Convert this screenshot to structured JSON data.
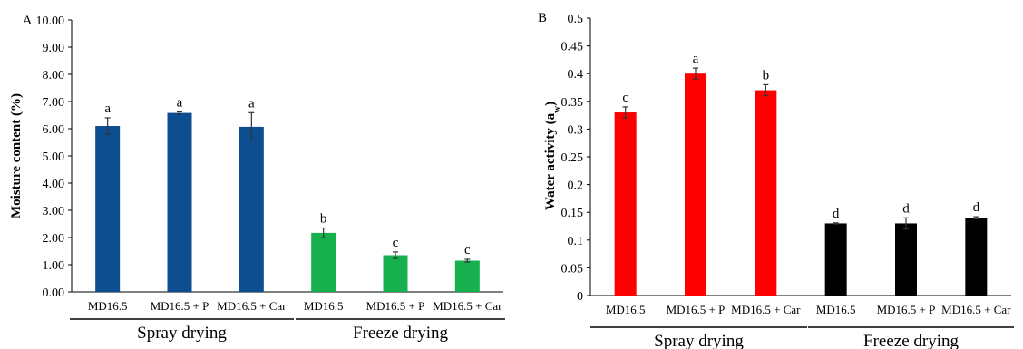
{
  "chart_data": [
    {
      "panel_label": "A",
      "type": "bar",
      "ylabel": "Moisture content (%)",
      "ylim": [
        0,
        10
      ],
      "yticks": [
        "0.00",
        "1.00",
        "2.00",
        "3.00",
        "4.00",
        "5.00",
        "6.00",
        "7.00",
        "8.00",
        "9.00",
        "10.00"
      ],
      "categories": [
        "MD16.5",
        "MD16.5 + P",
        "MD16.5 + Car",
        "MD16.5",
        "MD16.5 + P",
        "MD16.5 + Car"
      ],
      "groups": [
        "Spray drying",
        "Freeze drying"
      ],
      "values": [
        6.1,
        6.58,
        6.07,
        2.17,
        1.35,
        1.15
      ],
      "errors": [
        0.3,
        0.04,
        0.52,
        0.18,
        0.12,
        0.05
      ],
      "letters": [
        "a",
        "a",
        "a",
        "b",
        "c",
        "c"
      ],
      "colors": [
        "#0d4e91",
        "#0d4e91",
        "#0d4e91",
        "#17b04f",
        "#17b04f",
        "#17b04f"
      ]
    },
    {
      "panel_label": "B",
      "type": "bar",
      "ylabel": "Water activity (a",
      "ylabel_sub": "w",
      "ylabel_end": ")",
      "ylim": [
        0,
        0.5
      ],
      "yticks": [
        "0",
        "0.05",
        "0.1",
        "0.15",
        "0.2",
        "0.25",
        "0.3",
        "0.35",
        "0.4",
        "0.45",
        "0.5"
      ],
      "categories": [
        "MD16.5",
        "MD16.5 + P",
        "MD16.5 + Car",
        "MD16.5",
        "MD16.5 + P",
        "MD16.5 + Car"
      ],
      "groups": [
        "Spray drying",
        "Freeze drying"
      ],
      "values": [
        0.33,
        0.4,
        0.37,
        0.13,
        0.13,
        0.14
      ],
      "errors": [
        0.01,
        0.01,
        0.01,
        0.001,
        0.01,
        0.002
      ],
      "letters": [
        "c",
        "a",
        "b",
        "d",
        "d",
        "d"
      ],
      "colors": [
        "#ff0000",
        "#ff0000",
        "#ff0000",
        "#000000",
        "#000000",
        "#000000"
      ]
    }
  ]
}
